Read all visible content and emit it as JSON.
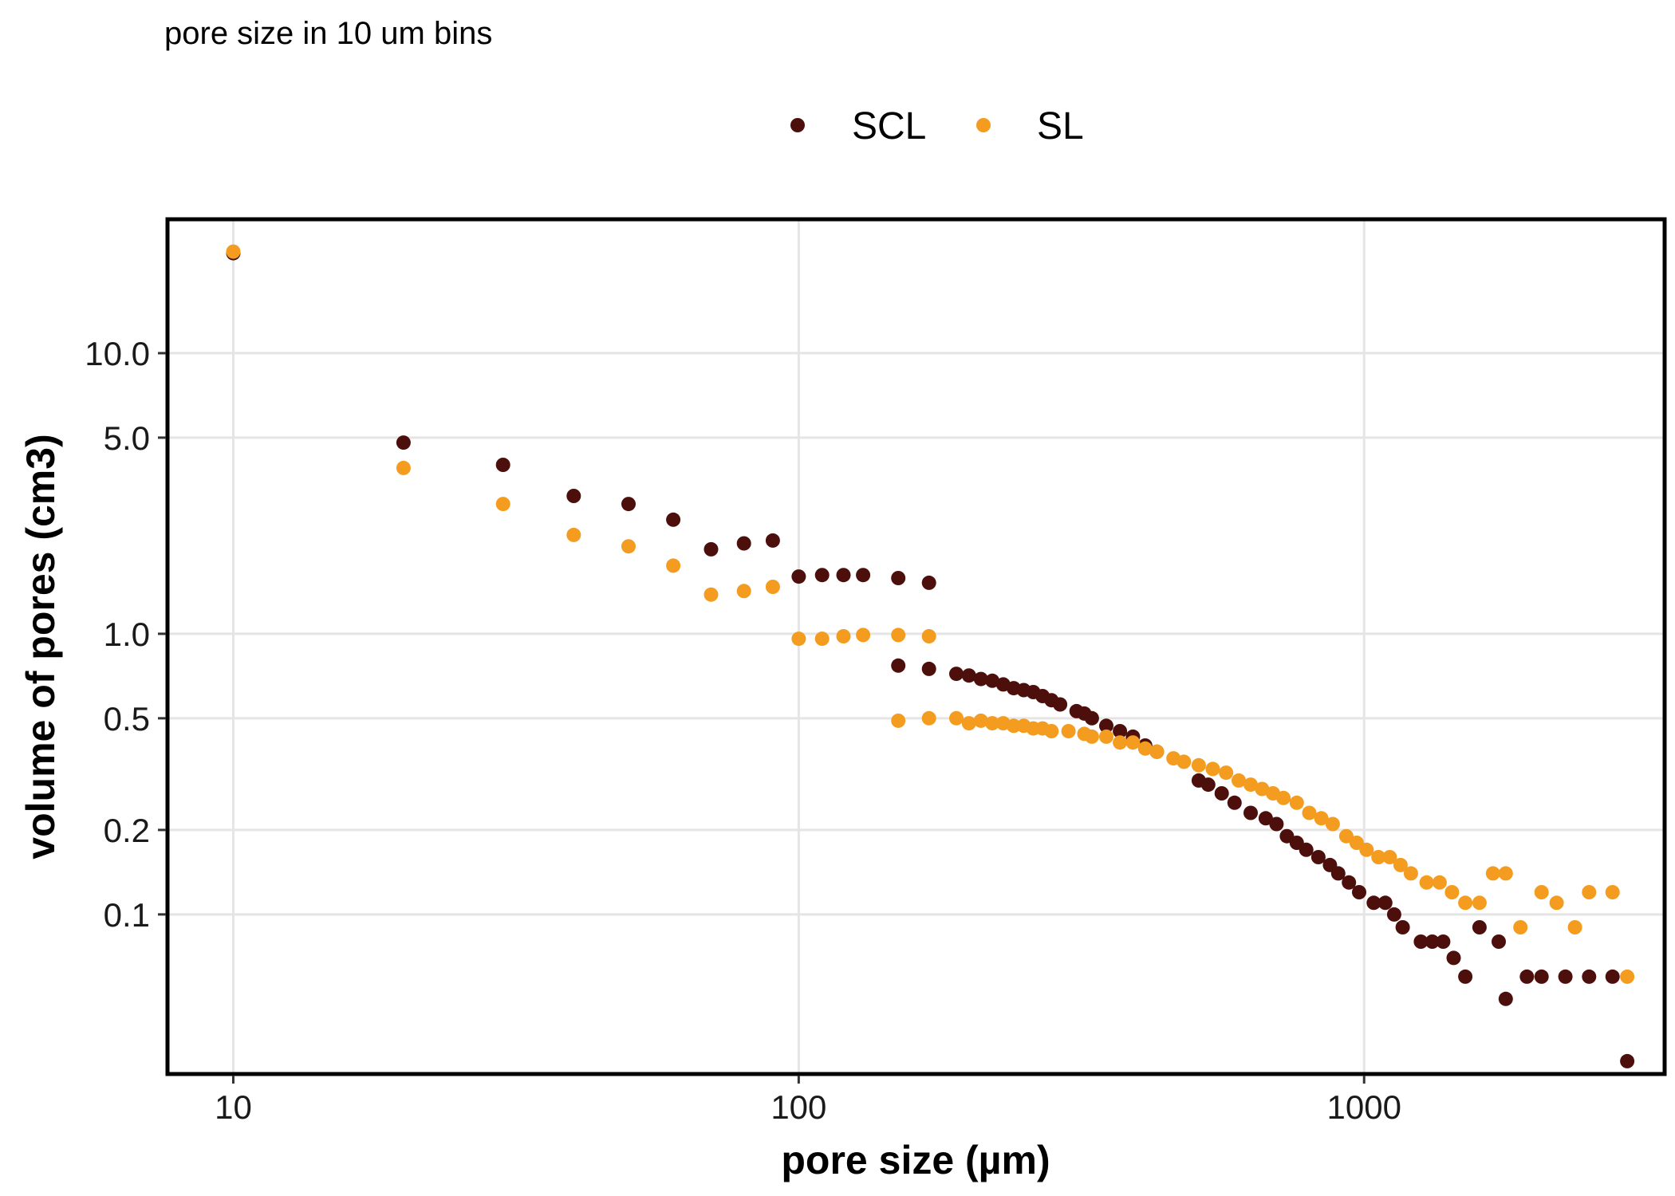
{
  "chart_data": {
    "type": "scatter",
    "subtitle": "pore size in 10 um bins",
    "xlabel": "pore size (µm)",
    "ylabel": "volume of pores (cm3)",
    "xscale": "log10",
    "yscale": "log10",
    "xlim": [
      7.65,
      3400
    ],
    "ylim": [
      0.027,
      30
    ],
    "xticks": [
      {
        "value": 10,
        "label": "10"
      },
      {
        "value": 100,
        "label": "100"
      },
      {
        "value": 1000,
        "label": "1000"
      }
    ],
    "yticks": [
      {
        "value": 0.1,
        "label": "0.1"
      },
      {
        "value": 0.2,
        "label": "0.2"
      },
      {
        "value": 0.5,
        "label": "0.5"
      },
      {
        "value": 1.0,
        "label": "1.0"
      },
      {
        "value": 5.0,
        "label": "5.0"
      },
      {
        "value": 10.0,
        "label": "10.0"
      }
    ],
    "grid": true,
    "legend_position": "top",
    "series": [
      {
        "name": "SCL",
        "color": "#4d0f0c",
        "points": [
          [
            10,
            22.7
          ],
          [
            20,
            4.8
          ],
          [
            30,
            4.0
          ],
          [
            40,
            3.1
          ],
          [
            50,
            2.9
          ],
          [
            60,
            2.55
          ],
          [
            70,
            2.0
          ],
          [
            80,
            2.1
          ],
          [
            90,
            2.15
          ],
          [
            100,
            1.6
          ],
          [
            110,
            1.62
          ],
          [
            120,
            1.62
          ],
          [
            130,
            1.62
          ],
          [
            150,
            1.58
          ],
          [
            170,
            1.52
          ],
          [
            150,
            0.77
          ],
          [
            170,
            0.75
          ],
          [
            190,
            0.72
          ],
          [
            200,
            0.71
          ],
          [
            210,
            0.69
          ],
          [
            220,
            0.68
          ],
          [
            230,
            0.66
          ],
          [
            240,
            0.64
          ],
          [
            250,
            0.63
          ],
          [
            260,
            0.62
          ],
          [
            270,
            0.6
          ],
          [
            280,
            0.58
          ],
          [
            290,
            0.56
          ],
          [
            310,
            0.53
          ],
          [
            320,
            0.52
          ],
          [
            330,
            0.5
          ],
          [
            350,
            0.47
          ],
          [
            370,
            0.45
          ],
          [
            390,
            0.43
          ],
          [
            410,
            0.4
          ],
          [
            430,
            0.38
          ],
          [
            510,
            0.3
          ],
          [
            530,
            0.29
          ],
          [
            560,
            0.27
          ],
          [
            590,
            0.25
          ],
          [
            630,
            0.23
          ],
          [
            670,
            0.22
          ],
          [
            700,
            0.21
          ],
          [
            730,
            0.19
          ],
          [
            760,
            0.18
          ],
          [
            790,
            0.17
          ],
          [
            830,
            0.16
          ],
          [
            870,
            0.15
          ],
          [
            900,
            0.14
          ],
          [
            940,
            0.13
          ],
          [
            980,
            0.12
          ],
          [
            1040,
            0.11
          ],
          [
            1090,
            0.11
          ],
          [
            1130,
            0.1
          ],
          [
            1170,
            0.09
          ],
          [
            1260,
            0.08
          ],
          [
            1320,
            0.08
          ],
          [
            1380,
            0.08
          ],
          [
            1440,
            0.07
          ],
          [
            1510,
            0.06
          ],
          [
            1600,
            0.09
          ],
          [
            1730,
            0.08
          ],
          [
            1780,
            0.05
          ],
          [
            1940,
            0.06
          ],
          [
            2060,
            0.06
          ],
          [
            2270,
            0.06
          ],
          [
            2500,
            0.06
          ],
          [
            2750,
            0.06
          ],
          [
            2920,
            0.03
          ]
        ]
      },
      {
        "name": "SL",
        "color": "#f39c1f",
        "points": [
          [
            10,
            23.0
          ],
          [
            20,
            3.9
          ],
          [
            30,
            2.9
          ],
          [
            40,
            2.25
          ],
          [
            50,
            2.05
          ],
          [
            60,
            1.75
          ],
          [
            70,
            1.38
          ],
          [
            80,
            1.42
          ],
          [
            90,
            1.47
          ],
          [
            100,
            0.96
          ],
          [
            110,
            0.96
          ],
          [
            120,
            0.98
          ],
          [
            130,
            0.99
          ],
          [
            150,
            0.99
          ],
          [
            170,
            0.98
          ],
          [
            150,
            0.49
          ],
          [
            170,
            0.5
          ],
          [
            190,
            0.5
          ],
          [
            200,
            0.48
          ],
          [
            210,
            0.49
          ],
          [
            220,
            0.48
          ],
          [
            230,
            0.48
          ],
          [
            240,
            0.47
          ],
          [
            250,
            0.47
          ],
          [
            260,
            0.46
          ],
          [
            270,
            0.46
          ],
          [
            280,
            0.45
          ],
          [
            300,
            0.45
          ],
          [
            320,
            0.44
          ],
          [
            330,
            0.43
          ],
          [
            350,
            0.43
          ],
          [
            370,
            0.41
          ],
          [
            390,
            0.41
          ],
          [
            410,
            0.39
          ],
          [
            430,
            0.38
          ],
          [
            460,
            0.36
          ],
          [
            480,
            0.35
          ],
          [
            510,
            0.34
          ],
          [
            540,
            0.33
          ],
          [
            570,
            0.32
          ],
          [
            600,
            0.3
          ],
          [
            630,
            0.29
          ],
          [
            660,
            0.28
          ],
          [
            690,
            0.27
          ],
          [
            720,
            0.26
          ],
          [
            760,
            0.25
          ],
          [
            800,
            0.23
          ],
          [
            840,
            0.22
          ],
          [
            880,
            0.21
          ],
          [
            930,
            0.19
          ],
          [
            970,
            0.18
          ],
          [
            1010,
            0.17
          ],
          [
            1060,
            0.16
          ],
          [
            1110,
            0.16
          ],
          [
            1160,
            0.15
          ],
          [
            1210,
            0.14
          ],
          [
            1290,
            0.13
          ],
          [
            1360,
            0.13
          ],
          [
            1430,
            0.12
          ],
          [
            1510,
            0.11
          ],
          [
            1600,
            0.11
          ],
          [
            1690,
            0.14
          ],
          [
            1780,
            0.14
          ],
          [
            1890,
            0.09
          ],
          [
            2060,
            0.12
          ],
          [
            2190,
            0.11
          ],
          [
            2360,
            0.09
          ],
          [
            2500,
            0.12
          ],
          [
            2750,
            0.12
          ],
          [
            2920,
            0.06
          ]
        ]
      }
    ]
  }
}
